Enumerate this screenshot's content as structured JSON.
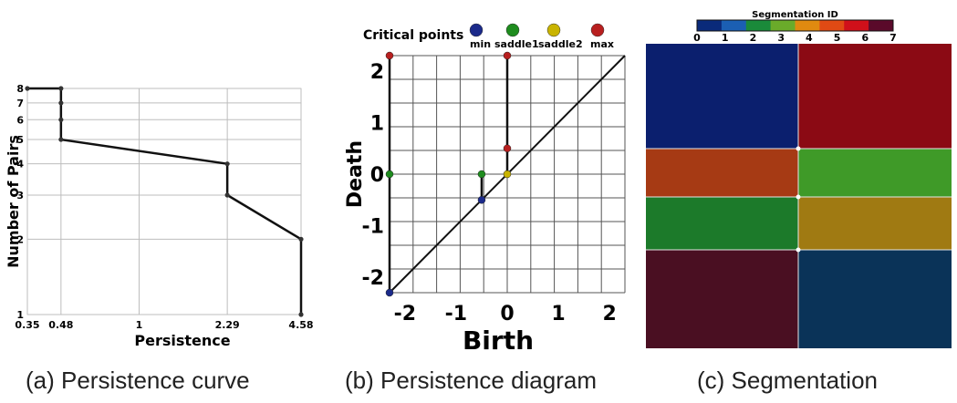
{
  "chart_data": [
    {
      "type": "line",
      "subtype": "step",
      "caption": "(a) Persistence curve",
      "xlabel": "Persistence",
      "ylabel": "Number of Pairs",
      "yscale": "log",
      "xlim": [
        0.35,
        4.58
      ],
      "ylim": [
        1,
        8
      ],
      "x_tick_labels": [
        "0.35",
        "0.48",
        "1",
        "2.29",
        "4.58"
      ],
      "y_tick_labels": [
        "1",
        "2",
        "3",
        "4",
        "5",
        "6",
        "7",
        "8"
      ],
      "grid": true,
      "series": [
        {
          "points": [
            [
              0.35,
              8
            ],
            [
              0.48,
              8
            ],
            [
              0.48,
              7
            ],
            [
              0.48,
              6
            ],
            [
              0.48,
              5
            ],
            [
              2.29,
              4
            ],
            [
              2.29,
              3
            ],
            [
              4.58,
              2
            ],
            [
              4.58,
              1
            ]
          ]
        }
      ]
    },
    {
      "type": "scatter",
      "caption": "(b) Persistence diagram",
      "xlabel": "Birth",
      "ylabel": "Death",
      "xlim": [
        -2.3,
        2.3
      ],
      "ylim": [
        -2.3,
        2.3
      ],
      "x_tick_labels": [
        "-2",
        "-1",
        "0",
        "1",
        "2"
      ],
      "y_tick_labels": [
        "-2",
        "-1",
        "0",
        "1",
        "2"
      ],
      "grid": true,
      "legend": {
        "title": "Critical points",
        "placement": "top",
        "entries": [
          {
            "label": "min",
            "color": "#1b2a8a"
          },
          {
            "label": "saddle1",
            "color": "#1e8c1e"
          },
          {
            "label": "saddle2",
            "color": "#c9b400"
          },
          {
            "label": "max",
            "color": "#b81f1f"
          }
        ]
      },
      "points": [
        {
          "x": -2.3,
          "y": -2.3,
          "kind": "min"
        },
        {
          "x": -2.3,
          "y": 0,
          "kind": "saddle1"
        },
        {
          "x": -2.3,
          "y": 2.3,
          "kind": "max"
        },
        {
          "x": -0.5,
          "y": -0.5,
          "kind": "min"
        },
        {
          "x": -0.5,
          "y": 0,
          "kind": "saddle1"
        },
        {
          "x": 0,
          "y": 0,
          "kind": "saddle2"
        },
        {
          "x": 0,
          "y": 0.5,
          "kind": "max"
        },
        {
          "x": 0,
          "y": 2.3,
          "kind": "max"
        }
      ],
      "pairs": [
        {
          "x": -2.3,
          "y0": -2.3,
          "y1": 2.3
        },
        {
          "x": -0.5,
          "y0": -0.5,
          "y1": 0
        },
        {
          "x": 0,
          "y0": 0,
          "y1": 2.3
        }
      ]
    },
    {
      "type": "heatmap",
      "caption": "(c) Segmentation",
      "colorbar_title": "Segmentation ID",
      "colorbar_ticks": [
        "0",
        "1",
        "2",
        "3",
        "4",
        "5",
        "6",
        "7"
      ],
      "colorbar_colors": [
        "#0a2a7a",
        "#1b5fb3",
        "#1a8a3a",
        "#6aab2a",
        "#e08a10",
        "#e04a14",
        "#d0101a",
        "#5a0a2a"
      ],
      "regions": [
        {
          "row": 0,
          "col": 0,
          "color": "#0b1f6e"
        },
        {
          "row": 0,
          "col": 1,
          "color": "#8b0a14"
        },
        {
          "row": 1,
          "col": 0,
          "color": "#a63a14"
        },
        {
          "row": 1,
          "col": 1,
          "color": "#3f9a28"
        },
        {
          "row": 2,
          "col": 0,
          "color": "#1c7a2a"
        },
        {
          "row": 2,
          "col": 1,
          "color": "#a07a12"
        },
        {
          "row": 3,
          "col": 0,
          "color": "#4a0f22"
        },
        {
          "row": 3,
          "col": 1,
          "color": "#0a3358"
        }
      ]
    }
  ]
}
